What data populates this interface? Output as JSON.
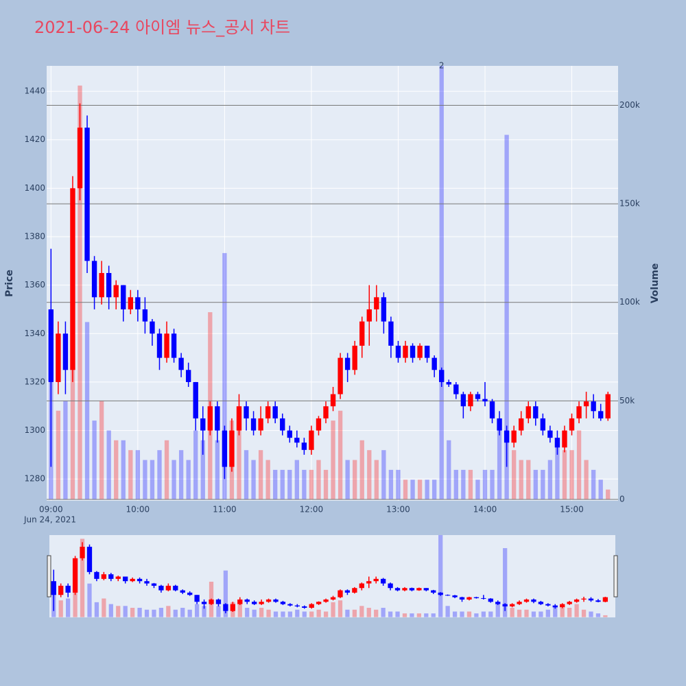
{
  "chart_data": {
    "type": "candlestick",
    "title": "2021-06-24 아이엠 뉴스_공시 차트",
    "y_label": "Price",
    "y2_label": "Volume",
    "x_date_label": "Jun 24, 2021",
    "x": [
      "09:00",
      "09:05",
      "09:10",
      "09:15",
      "09:20",
      "09:25",
      "09:30",
      "09:35",
      "09:40",
      "09:45",
      "09:50",
      "09:55",
      "10:00",
      "10:05",
      "10:10",
      "10:15",
      "10:20",
      "10:25",
      "10:30",
      "10:35",
      "10:40",
      "10:45",
      "10:50",
      "10:55",
      "11:00",
      "11:05",
      "11:10",
      "11:15",
      "11:20",
      "11:25",
      "11:30",
      "11:35",
      "11:40",
      "11:45",
      "11:50",
      "11:55",
      "12:00",
      "12:05",
      "12:10",
      "12:15",
      "12:20",
      "12:25",
      "12:30",
      "12:35",
      "12:40",
      "12:45",
      "12:50",
      "12:55",
      "13:00",
      "13:05",
      "13:10",
      "13:15",
      "13:20",
      "13:25",
      "13:30",
      "13:35",
      "13:40",
      "13:45",
      "13:50",
      "13:55",
      "14:00",
      "14:05",
      "14:10",
      "14:15",
      "14:20",
      "14:25",
      "14:30",
      "14:35",
      "14:40",
      "14:45",
      "14:50",
      "14:55",
      "15:00",
      "15:05",
      "15:10",
      "15:15",
      "15:20",
      "15:25"
    ],
    "open": [
      1350,
      1320,
      1340,
      1325,
      1400,
      1425,
      1370,
      1355,
      1365,
      1355,
      1360,
      1350,
      1355,
      1350,
      1345,
      1340,
      1330,
      1340,
      1330,
      1325,
      1320,
      1305,
      1300,
      1310,
      1300,
      1285,
      1300,
      1310,
      1305,
      1300,
      1305,
      1310,
      1305,
      1300,
      1297,
      1295,
      1292,
      1300,
      1305,
      1310,
      1315,
      1330,
      1325,
      1335,
      1345,
      1350,
      1355,
      1345,
      1335,
      1330,
      1335,
      1330,
      1335,
      1330,
      1325,
      1320,
      1319,
      1315,
      1310,
      1315,
      1313,
      1312,
      1305,
      1300,
      1295,
      1300,
      1305,
      1310,
      1305,
      1300,
      1297,
      1293,
      1300,
      1305,
      1310,
      1312,
      1308,
      1305
    ],
    "high": [
      1375,
      1345,
      1345,
      1405,
      1435,
      1430,
      1372,
      1370,
      1368,
      1362,
      1360,
      1358,
      1358,
      1355,
      1346,
      1342,
      1345,
      1342,
      1332,
      1328,
      1320,
      1310,
      1312,
      1312,
      1302,
      1305,
      1315,
      1312,
      1308,
      1310,
      1312,
      1312,
      1307,
      1302,
      1300,
      1297,
      1302,
      1306,
      1312,
      1318,
      1332,
      1332,
      1337,
      1347,
      1360,
      1360,
      1357,
      1347,
      1337,
      1337,
      1336,
      1336,
      1335,
      1331,
      1326,
      1321,
      1320,
      1316,
      1316,
      1316,
      1320,
      1313,
      1308,
      1302,
      1302,
      1308,
      1312,
      1312,
      1307,
      1302,
      1300,
      1302,
      1307,
      1312,
      1316,
      1315,
      1311,
      1316
    ],
    "low": [
      1285,
      1315,
      1315,
      1320,
      1395,
      1365,
      1350,
      1352,
      1350,
      1350,
      1345,
      1348,
      1345,
      1340,
      1335,
      1325,
      1328,
      1328,
      1322,
      1318,
      1300,
      1290,
      1298,
      1295,
      1280,
      1283,
      1298,
      1300,
      1298,
      1298,
      1303,
      1303,
      1298,
      1295,
      1293,
      1290,
      1290,
      1298,
      1303,
      1308,
      1313,
      1320,
      1323,
      1330,
      1335,
      1345,
      1340,
      1330,
      1328,
      1328,
      1328,
      1329,
      1328,
      1322,
      1318,
      1318,
      1313,
      1305,
      1308,
      1312,
      1310,
      1303,
      1298,
      1285,
      1293,
      1298,
      1303,
      1302,
      1298,
      1295,
      1290,
      1291,
      1298,
      1303,
      1305,
      1305,
      1304,
      1304
    ],
    "close": [
      1320,
      1340,
      1325,
      1400,
      1425,
      1370,
      1355,
      1365,
      1355,
      1360,
      1350,
      1355,
      1350,
      1345,
      1340,
      1330,
      1340,
      1330,
      1325,
      1320,
      1305,
      1300,
      1310,
      1300,
      1285,
      1300,
      1310,
      1305,
      1300,
      1305,
      1310,
      1305,
      1300,
      1297,
      1295,
      1292,
      1300,
      1305,
      1310,
      1315,
      1330,
      1325,
      1335,
      1345,
      1350,
      1355,
      1345,
      1335,
      1330,
      1335,
      1330,
      1335,
      1330,
      1325,
      1320,
      1319,
      1315,
      1310,
      1315,
      1313,
      1312,
      1305,
      1300,
      1295,
      1300,
      1305,
      1310,
      1305,
      1300,
      1297,
      1293,
      1300,
      1305,
      1310,
      1312,
      1308,
      1305,
      1315
    ],
    "volume": [
      60000,
      45000,
      50000,
      70000,
      210000,
      90000,
      40000,
      50000,
      35000,
      30000,
      30000,
      25000,
      25000,
      20000,
      20000,
      25000,
      30000,
      20000,
      25000,
      20000,
      35000,
      30000,
      95000,
      30000,
      125000,
      40000,
      35000,
      25000,
      20000,
      25000,
      20000,
      15000,
      15000,
      15000,
      20000,
      15000,
      15000,
      20000,
      15000,
      40000,
      45000,
      20000,
      20000,
      30000,
      25000,
      20000,
      25000,
      15000,
      15000,
      10000,
      10000,
      10000,
      10000,
      10000,
      220000,
      30000,
      15000,
      15000,
      15000,
      10000,
      15000,
      15000,
      35000,
      185000,
      25000,
      20000,
      20000,
      15000,
      15000,
      20000,
      30000,
      25000,
      25000,
      35000,
      20000,
      15000,
      10000,
      5000
    ],
    "increasing_color": "#ff0000",
    "decreasing_color": "#0000ff",
    "xlim": [
      "08:57",
      "15:32"
    ],
    "xticks": [
      "09:00",
      "10:00",
      "11:00",
      "12:00",
      "13:00",
      "14:00",
      "15:00"
    ],
    "ylim": [
      1271,
      1450.5
    ],
    "yticks": [
      1280,
      1300,
      1320,
      1340,
      1360,
      1380,
      1400,
      1420,
      1440
    ],
    "y2lim": [
      -700,
      220000
    ],
    "y2ticks": [
      0,
      {
        "value": 50000,
        "label": "50k"
      },
      {
        "value": 100000,
        "label": "100k"
      },
      {
        "value": 150000,
        "label": "150k"
      },
      {
        "value": 200000,
        "label": "200k"
      }
    ],
    "annotations": [
      {
        "x": "13:30",
        "text": "2"
      }
    ],
    "grid": true,
    "range_slider": true
  }
}
